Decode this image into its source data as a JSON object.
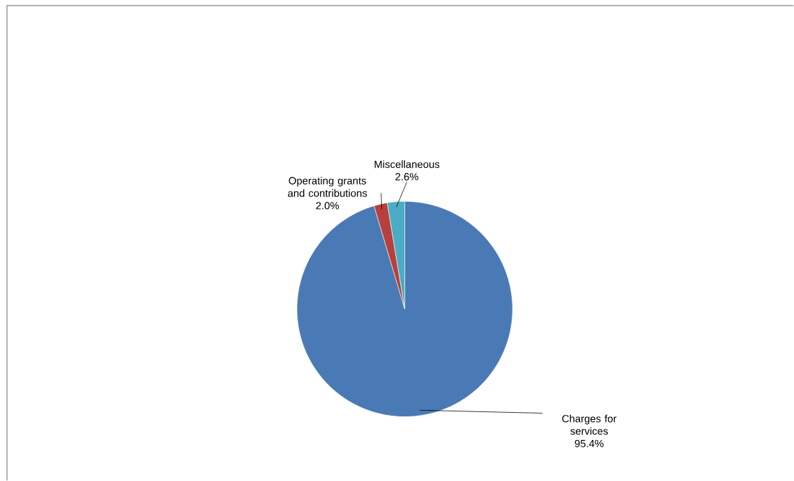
{
  "chart_data": {
    "type": "pie",
    "categories": [
      "Charges for services",
      "Operating grants and contributions",
      "Miscellaneous"
    ],
    "values": [
      95.4,
      2.0,
      2.6
    ],
    "value_labels": [
      "95.4%",
      "2.0%",
      "2.6%"
    ],
    "colors": [
      "#4a7ab5",
      "#b8403c",
      "#4bacc6"
    ]
  }
}
